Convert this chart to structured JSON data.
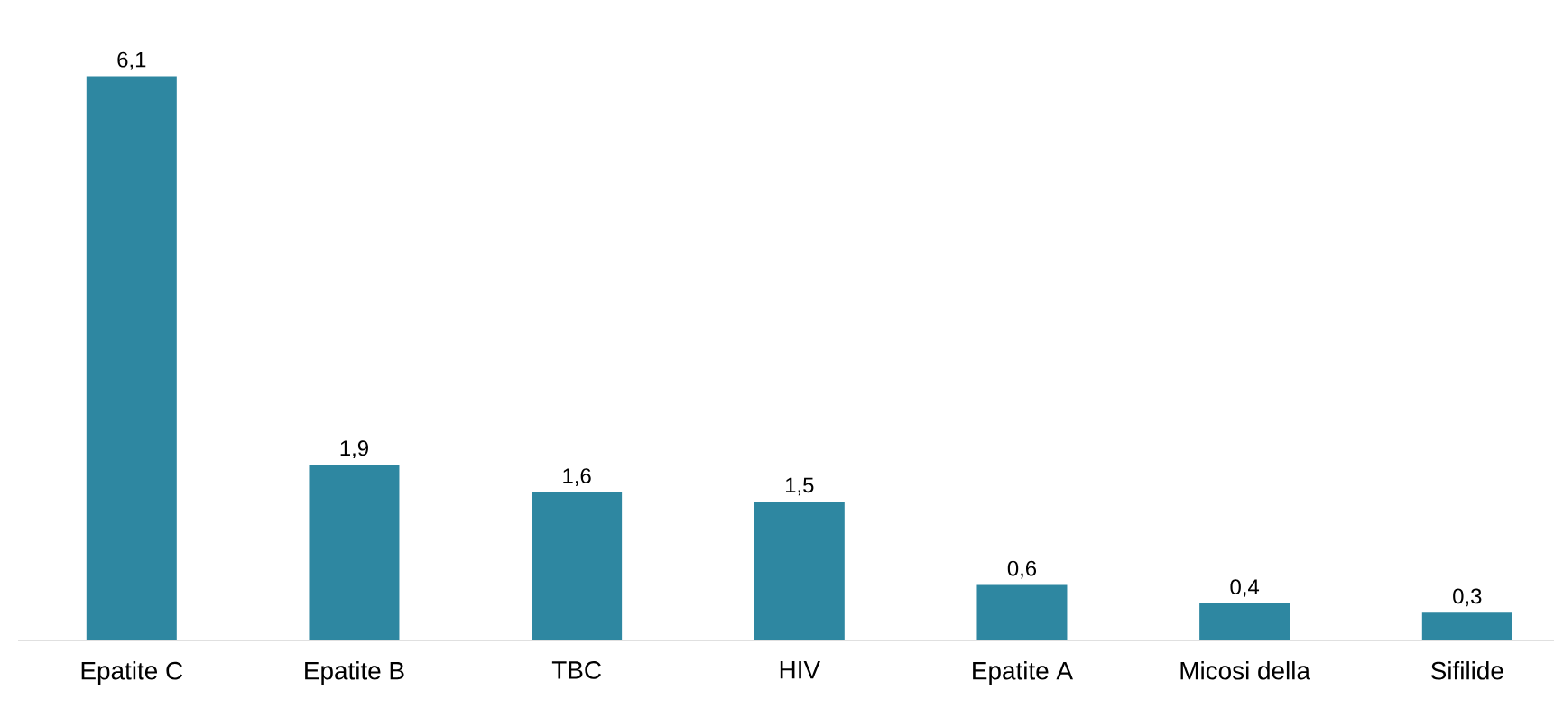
{
  "chart_data": {
    "type": "bar",
    "categories": [
      "Epatite C",
      "Epatite B",
      "TBC",
      "HIV",
      "Epatite A",
      "Micosi della",
      "Sifilide"
    ],
    "values": [
      6.1,
      1.9,
      1.6,
      1.5,
      0.6,
      0.4,
      0.3
    ],
    "value_labels": [
      "6,1",
      "1,9",
      "1,6",
      "1,5",
      "0,6",
      "0,4",
      "0,3"
    ],
    "color": "#2e87a1"
  }
}
